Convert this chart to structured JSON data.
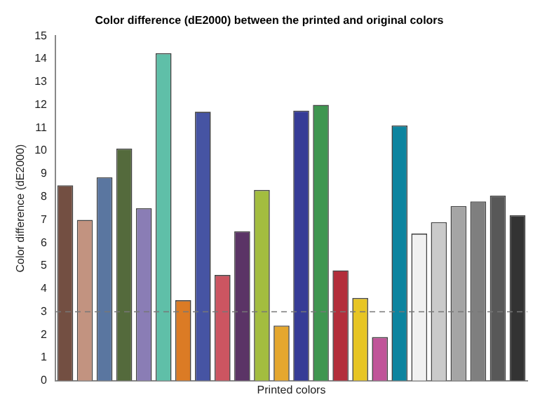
{
  "chart_data": {
    "type": "bar",
    "title": "Color difference (dE2000) between the printed and original colors",
    "xlabel": "Printed colors",
    "ylabel": "Color difference (dE2000)",
    "categories": [
      null,
      null,
      null,
      null,
      null,
      null,
      null,
      null,
      null,
      null,
      null,
      null,
      null,
      null,
      null,
      null,
      null,
      null,
      null,
      null,
      null,
      null,
      null,
      null
    ],
    "values": [
      8.5,
      7.0,
      8.85,
      10.1,
      7.5,
      14.25,
      3.5,
      11.7,
      4.6,
      6.5,
      8.3,
      2.4,
      11.75,
      12.0,
      4.8,
      3.6,
      1.9,
      11.1,
      6.4,
      6.9,
      7.6,
      7.8,
      8.05,
      7.2
    ],
    "colors": [
      "#734f42",
      "#c29380",
      "#5a76a0",
      "#546a3c",
      "#8a7db5",
      "#5fbfa8",
      "#db7b25",
      "#4654a3",
      "#cc5561",
      "#5b3466",
      "#a3bd3f",
      "#e5a72e",
      "#363c96",
      "#3f9650",
      "#b32e3b",
      "#e7c524",
      "#c05599",
      "#0d849f",
      "#f1f1f1",
      "#cacaca",
      "#a5a5a5",
      "#7f7f7f",
      "#585858",
      "#333333"
    ],
    "ylim": [
      0,
      15
    ],
    "yticks": [
      0,
      1,
      2,
      3,
      4,
      5,
      6,
      7,
      8,
      9,
      10,
      11,
      12,
      13,
      14,
      15
    ],
    "grid": false,
    "legend": false,
    "ref_lines": [
      {
        "axis": "y",
        "value": 3,
        "color": "#777777",
        "line_style": "dashed"
      }
    ]
  }
}
